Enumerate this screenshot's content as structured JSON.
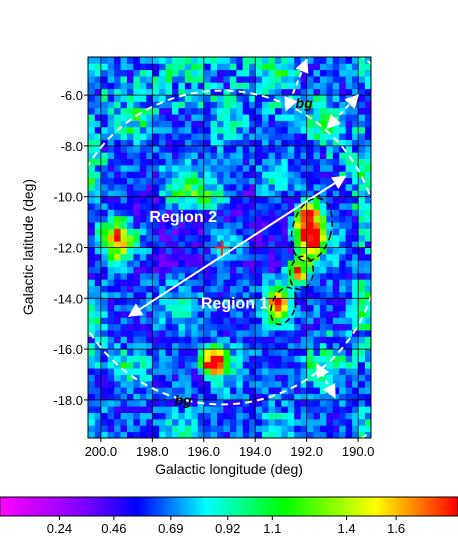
{
  "chart_data": {
    "type": "heatmap",
    "xlabel": "Galactic longitude (deg)",
    "ylabel": "Galactic latitude (deg)",
    "xlim": [
      200.5,
      189.5
    ],
    "ylim": [
      -19.5,
      -4.5
    ],
    "x_ticks": [
      200.0,
      198.0,
      196.0,
      194.0,
      192.0,
      190.0
    ],
    "x_tick_labels": [
      "200.0",
      "198.0",
      "196.0",
      "194.0",
      "192.0",
      "190.0"
    ],
    "y_ticks": [
      -6.0,
      -8.0,
      -10.0,
      -12.0,
      -14.0,
      -16.0,
      -18.0
    ],
    "y_tick_labels": [
      "-6.0",
      "-8.0",
      "-10.0",
      "-12.0",
      "-14.0",
      "-16.0",
      "-18.0"
    ],
    "grid": true,
    "colorbar": {
      "position": "bottom",
      "range": [
        0.0,
        1.85
      ],
      "ticks": [
        0.24,
        0.46,
        0.69,
        0.92,
        1.1,
        1.4,
        1.6
      ],
      "tick_labels": [
        "0.24",
        "0.46",
        "0.69",
        "0.92",
        "1.1",
        "1.4",
        "1.6"
      ],
      "colors": [
        "#ff00ff",
        "#8000ff",
        "#0000ff",
        "#00ffff",
        "#00ff00",
        "#ffff00",
        "#ff0000"
      ]
    },
    "center_marker": {
      "l": 195.3,
      "b": -12.0,
      "color": "#ff2020"
    },
    "inner_circle_radius_deg": 6.1,
    "outer_circle_radius_deg": 9.2,
    "diameter_arrow": {
      "from": [
        198.9,
        -14.7
      ],
      "to": [
        190.5,
        -9.2
      ]
    },
    "background_arrows": [
      {
        "from": [
          192.8,
          -6.6
        ],
        "to": [
          192.0,
          -4.6
        ]
      },
      {
        "from": [
          191.2,
          -7.3
        ],
        "to": [
          190.0,
          -6.0
        ]
      },
      {
        "from": [
          191.6,
          -16.6
        ],
        "to": [
          190.9,
          -17.9
        ]
      }
    ],
    "source_ellipses": [
      {
        "l": 191.8,
        "b": -11.3,
        "rl": 0.75,
        "rb": 1.25,
        "angle": 15
      },
      {
        "l": 192.2,
        "b": -13.0,
        "rl": 0.45,
        "rb": 0.65,
        "angle": 10
      },
      {
        "l": 192.9,
        "b": -14.3,
        "rl": 0.45,
        "rb": 0.75,
        "angle": 20
      }
    ],
    "annotations": [
      {
        "text": "Region 2",
        "l": 196.8,
        "b": -11.0
      },
      {
        "text": "Region 1",
        "l": 194.8,
        "b": -14.4
      }
    ],
    "bg_labels": [
      {
        "text": "bg",
        "l": 192.1,
        "b": -6.5
      },
      {
        "text": "bg",
        "l": 196.8,
        "b": -18.2
      }
    ]
  }
}
